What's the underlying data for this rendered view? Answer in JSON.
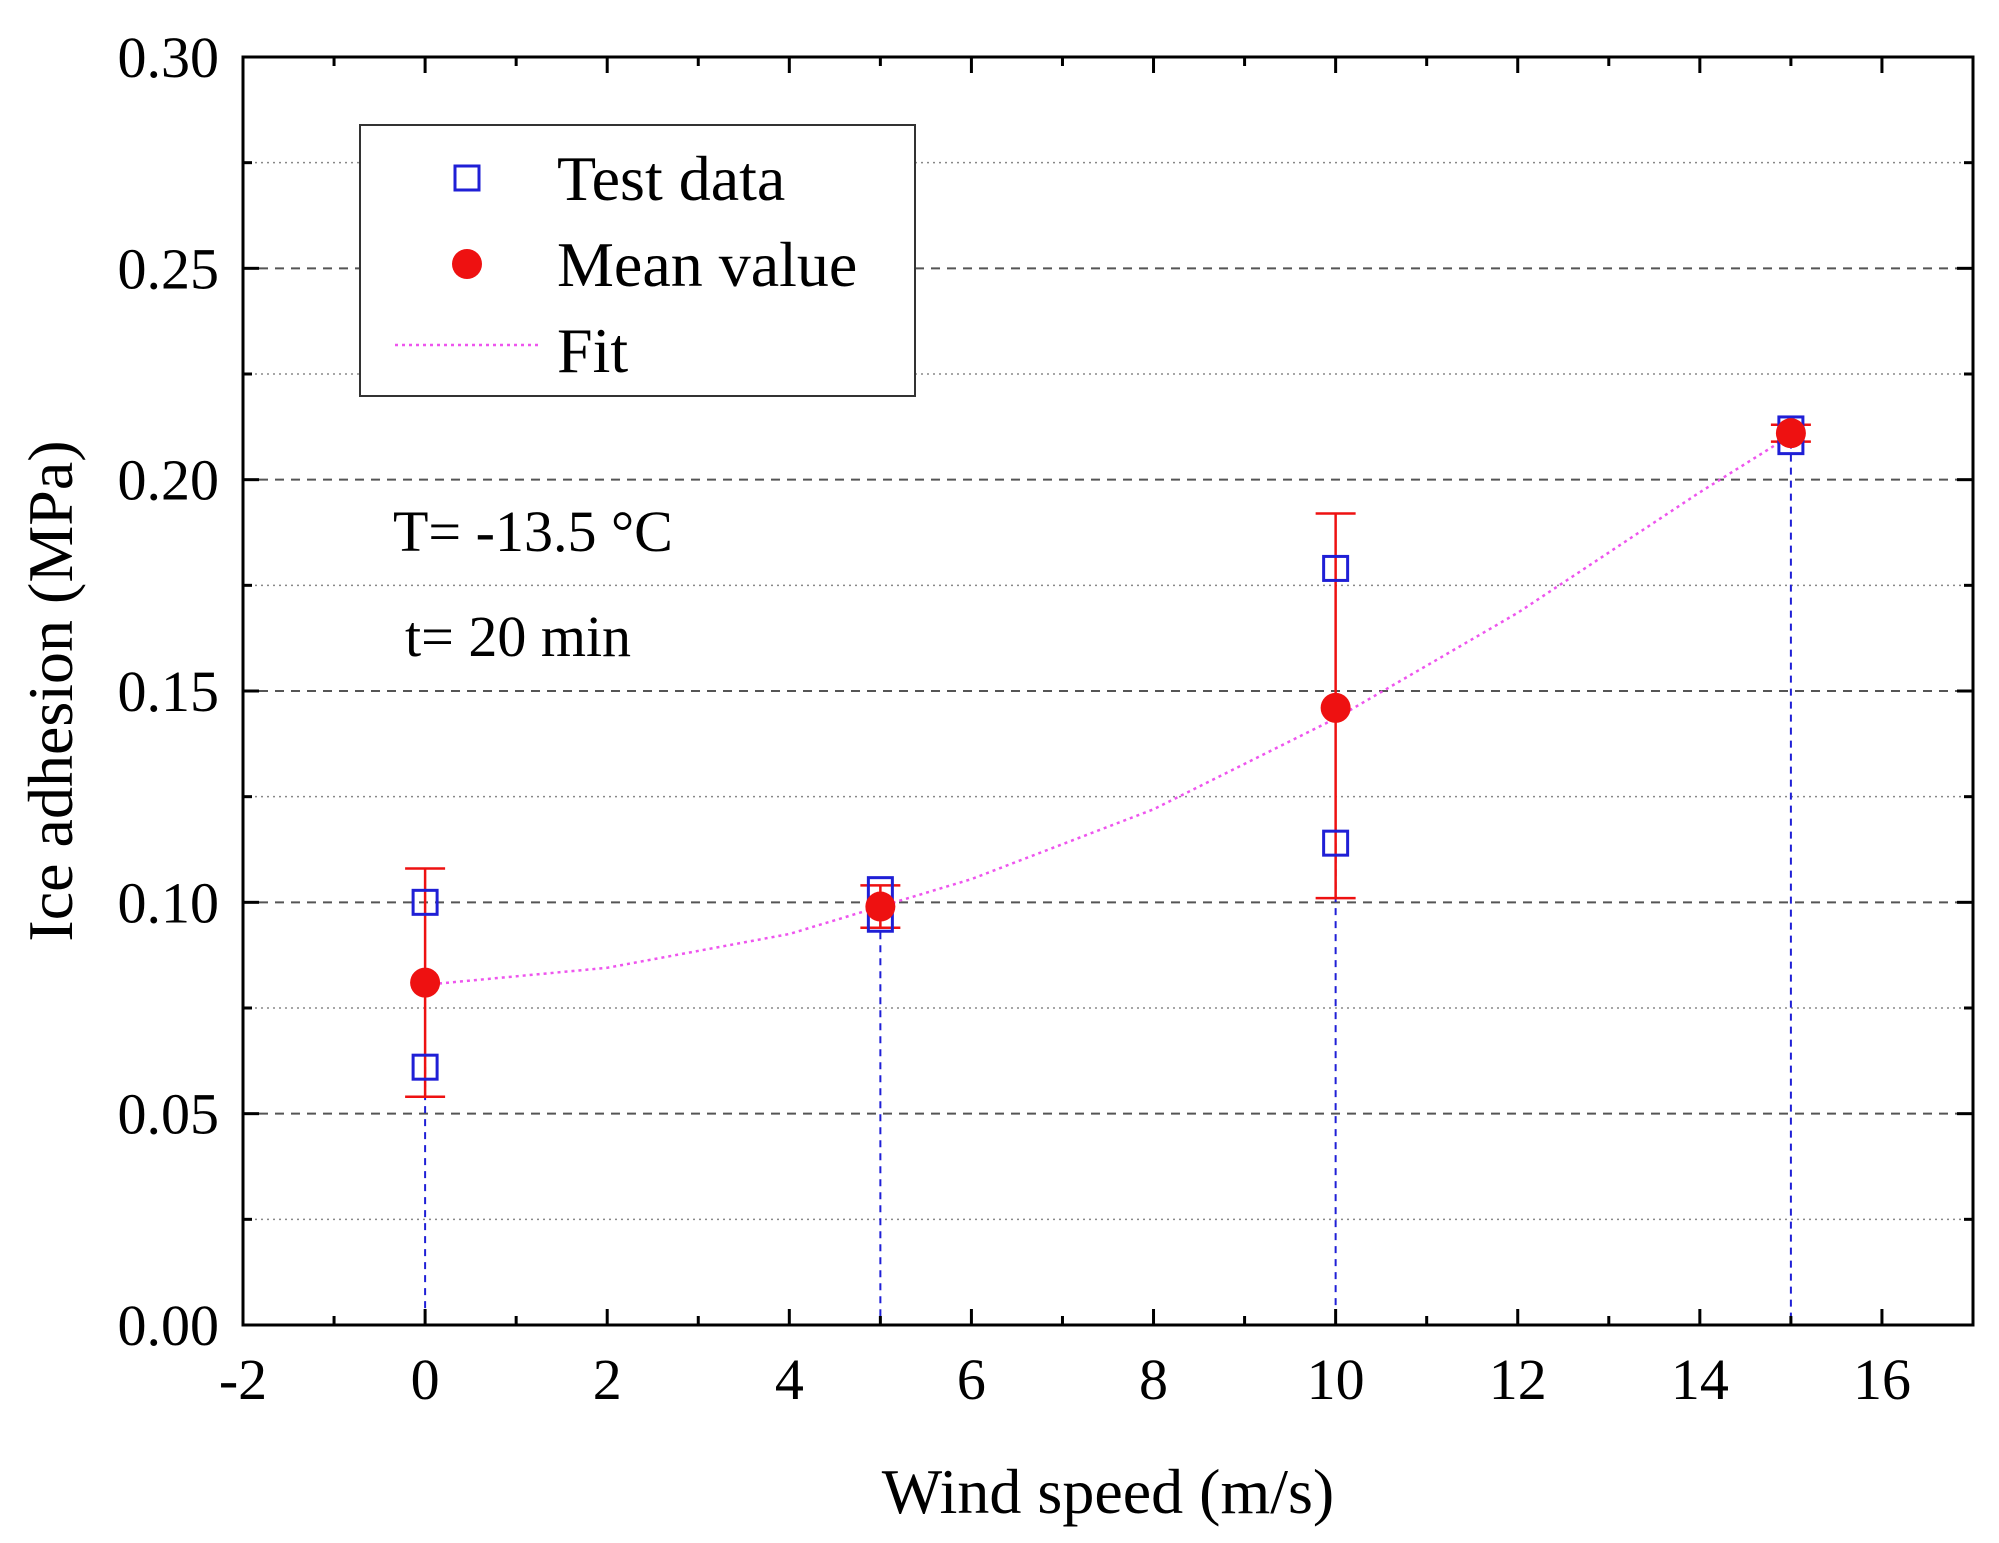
{
  "chart_data": {
    "type": "scatter",
    "xlabel": "Wind speed (m/s)",
    "ylabel": "Ice adhesion (MPa)",
    "xlim": [
      -2,
      17
    ],
    "ylim": [
      0.0,
      0.3
    ],
    "x_ticks": [
      -2,
      0,
      2,
      4,
      6,
      8,
      10,
      12,
      14,
      16
    ],
    "x_tick_labels": [
      "-2",
      "0",
      "2",
      "4",
      "6",
      "8",
      "10",
      "12",
      "14",
      "16"
    ],
    "y_ticks": [
      0.0,
      0.05,
      0.1,
      0.15,
      0.2,
      0.25,
      0.3
    ],
    "y_tick_labels": [
      "0.00",
      "0.05",
      "0.10",
      "0.15",
      "0.20",
      "0.25",
      "0.30"
    ],
    "grid": true,
    "legend": {
      "position": "top-left",
      "entries": [
        "Test data",
        "Mean value",
        "Fit"
      ]
    },
    "annotations": [
      "T= -13.5 °C",
      "t= 20 min"
    ],
    "series": [
      {
        "name": "Test data",
        "marker": "open-square",
        "color": "#1f1fd6",
        "points": [
          {
            "x": 0,
            "y": 0.1
          },
          {
            "x": 0,
            "y": 0.061
          },
          {
            "x": 5,
            "y": 0.103
          },
          {
            "x": 5,
            "y": 0.096
          },
          {
            "x": 10,
            "y": 0.179
          },
          {
            "x": 10,
            "y": 0.114
          },
          {
            "x": 15,
            "y": 0.212
          },
          {
            "x": 15,
            "y": 0.209
          }
        ]
      },
      {
        "name": "Mean value",
        "marker": "filled-circle",
        "color": "#ee1111",
        "points": [
          {
            "x": 0,
            "y": 0.081,
            "err_low": 0.054,
            "err_high": 0.108
          },
          {
            "x": 5,
            "y": 0.099,
            "err_low": 0.094,
            "err_high": 0.104
          },
          {
            "x": 10,
            "y": 0.146,
            "err_low": 0.101,
            "err_high": 0.192
          },
          {
            "x": 15,
            "y": 0.211,
            "err_low": 0.209,
            "err_high": 0.213
          }
        ]
      },
      {
        "name": "Fit",
        "line": "dotted",
        "color": "#ee55ee",
        "points": [
          {
            "x": 0,
            "y": 0.0805
          },
          {
            "x": 2,
            "y": 0.0845
          },
          {
            "x": 4,
            "y": 0.0925
          },
          {
            "x": 6,
            "y": 0.1055
          },
          {
            "x": 8,
            "y": 0.122
          },
          {
            "x": 10,
            "y": 0.1435
          },
          {
            "x": 12,
            "y": 0.1685
          },
          {
            "x": 14,
            "y": 0.197
          },
          {
            "x": 15,
            "y": 0.2105
          }
        ]
      }
    ],
    "drop_lines": {
      "color": "#1f1fd6",
      "x": [
        0,
        5,
        10,
        15
      ]
    }
  }
}
